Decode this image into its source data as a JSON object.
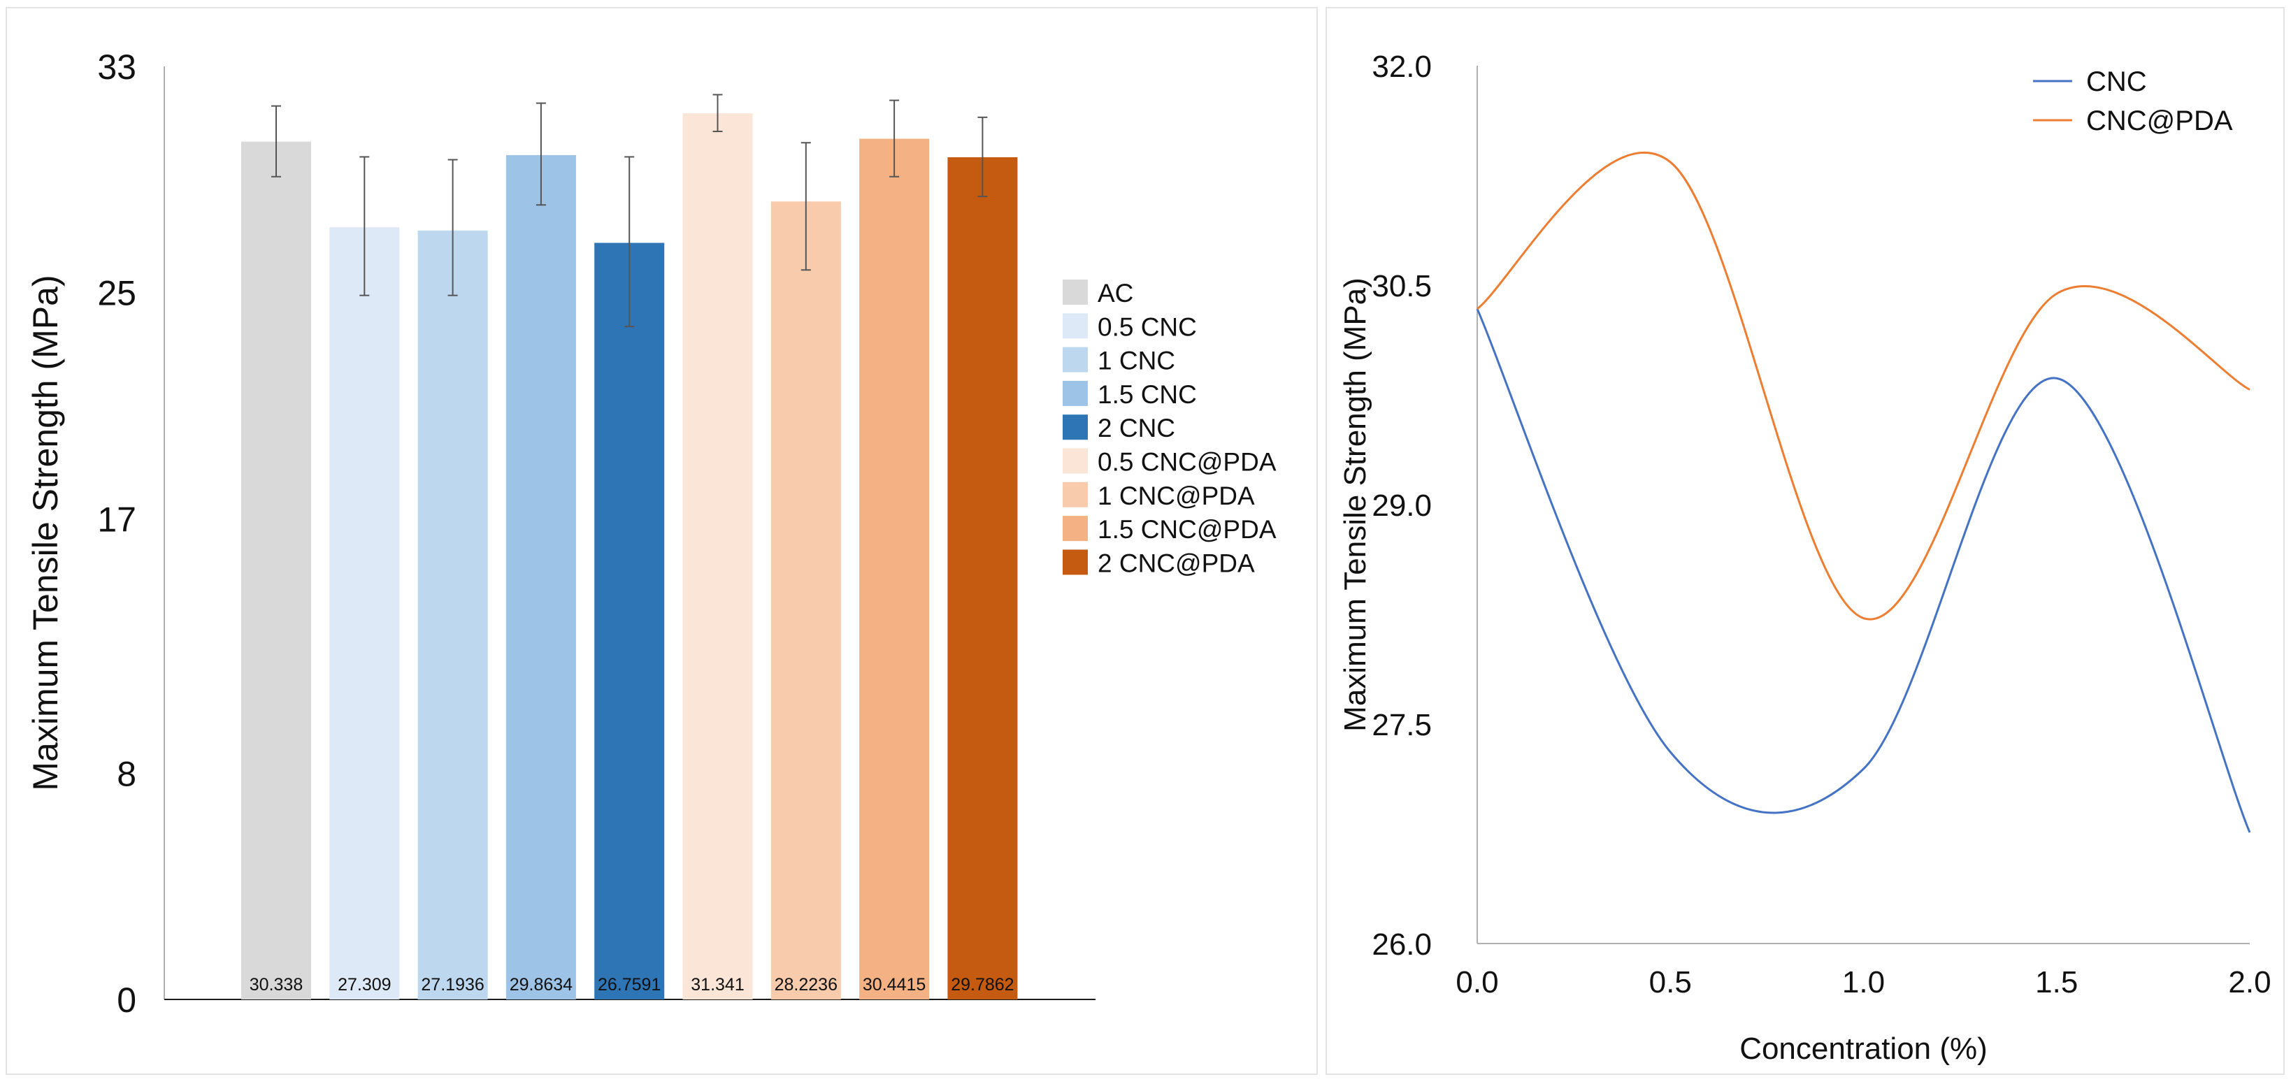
{
  "chart_data": [
    {
      "type": "bar",
      "ylabel": "Maximum Tensile Strength (MPa)",
      "xlabel": "",
      "ylim": [
        0,
        33
      ],
      "yticks": [
        0,
        8,
        17,
        25,
        33
      ],
      "grid": false,
      "legend_position": "right",
      "categories": [
        "AC",
        "0.5 CNC",
        "1 CNC",
        "1.5 CNC",
        "2 CNC",
        "0.5 CNC@PDA",
        "1 CNC@PDA",
        "1.5 CNC@PDA",
        "2 CNC@PDA"
      ],
      "values": [
        30.338,
        27.309,
        27.1936,
        29.8634,
        26.7591,
        31.341,
        28.2236,
        30.4415,
        29.7862
      ],
      "value_labels": [
        "30.338",
        "27.309",
        "27.1936",
        "29.8634",
        "26.7591",
        "31.341",
        "28.2236",
        "30.4415",
        "29.7862"
      ],
      "error_low": [
        29.1,
        24.9,
        24.9,
        28.1,
        23.8,
        30.7,
        25.8,
        29.1,
        28.4
      ],
      "error_high": [
        31.6,
        29.8,
        29.7,
        31.7,
        29.8,
        32.0,
        30.3,
        31.8,
        31.2
      ],
      "colors": [
        "#d9d9d9",
        "#dde9f6",
        "#bdd7ee",
        "#9dc3e6",
        "#2e75b6",
        "#fbe5d6",
        "#f8cbad",
        "#f4b183",
        "#c55a11"
      ]
    },
    {
      "type": "line",
      "xlabel": "Concentration (%)",
      "ylabel": "Maximum Tensile Strength (MPa)",
      "xlim": [
        0,
        2
      ],
      "ylim": [
        26,
        32
      ],
      "xticks": [
        "0.0",
        "0.5",
        "1.0",
        "1.5",
        "2.0"
      ],
      "yticks": [
        "26.0",
        "27.5",
        "29.0",
        "30.5",
        "32.0"
      ],
      "grid": false,
      "legend_position": "top-right",
      "x": [
        0,
        0.5,
        1,
        1.5,
        2
      ],
      "series": [
        {
          "name": "CNC",
          "color": "#4472c4",
          "values": [
            30.338,
            27.309,
            27.1936,
            29.8634,
            26.7591
          ]
        },
        {
          "name": "CNC@PDA",
          "color": "#ed7d31",
          "values": [
            30.338,
            31.341,
            28.2236,
            30.4415,
            29.7862
          ]
        }
      ]
    }
  ]
}
